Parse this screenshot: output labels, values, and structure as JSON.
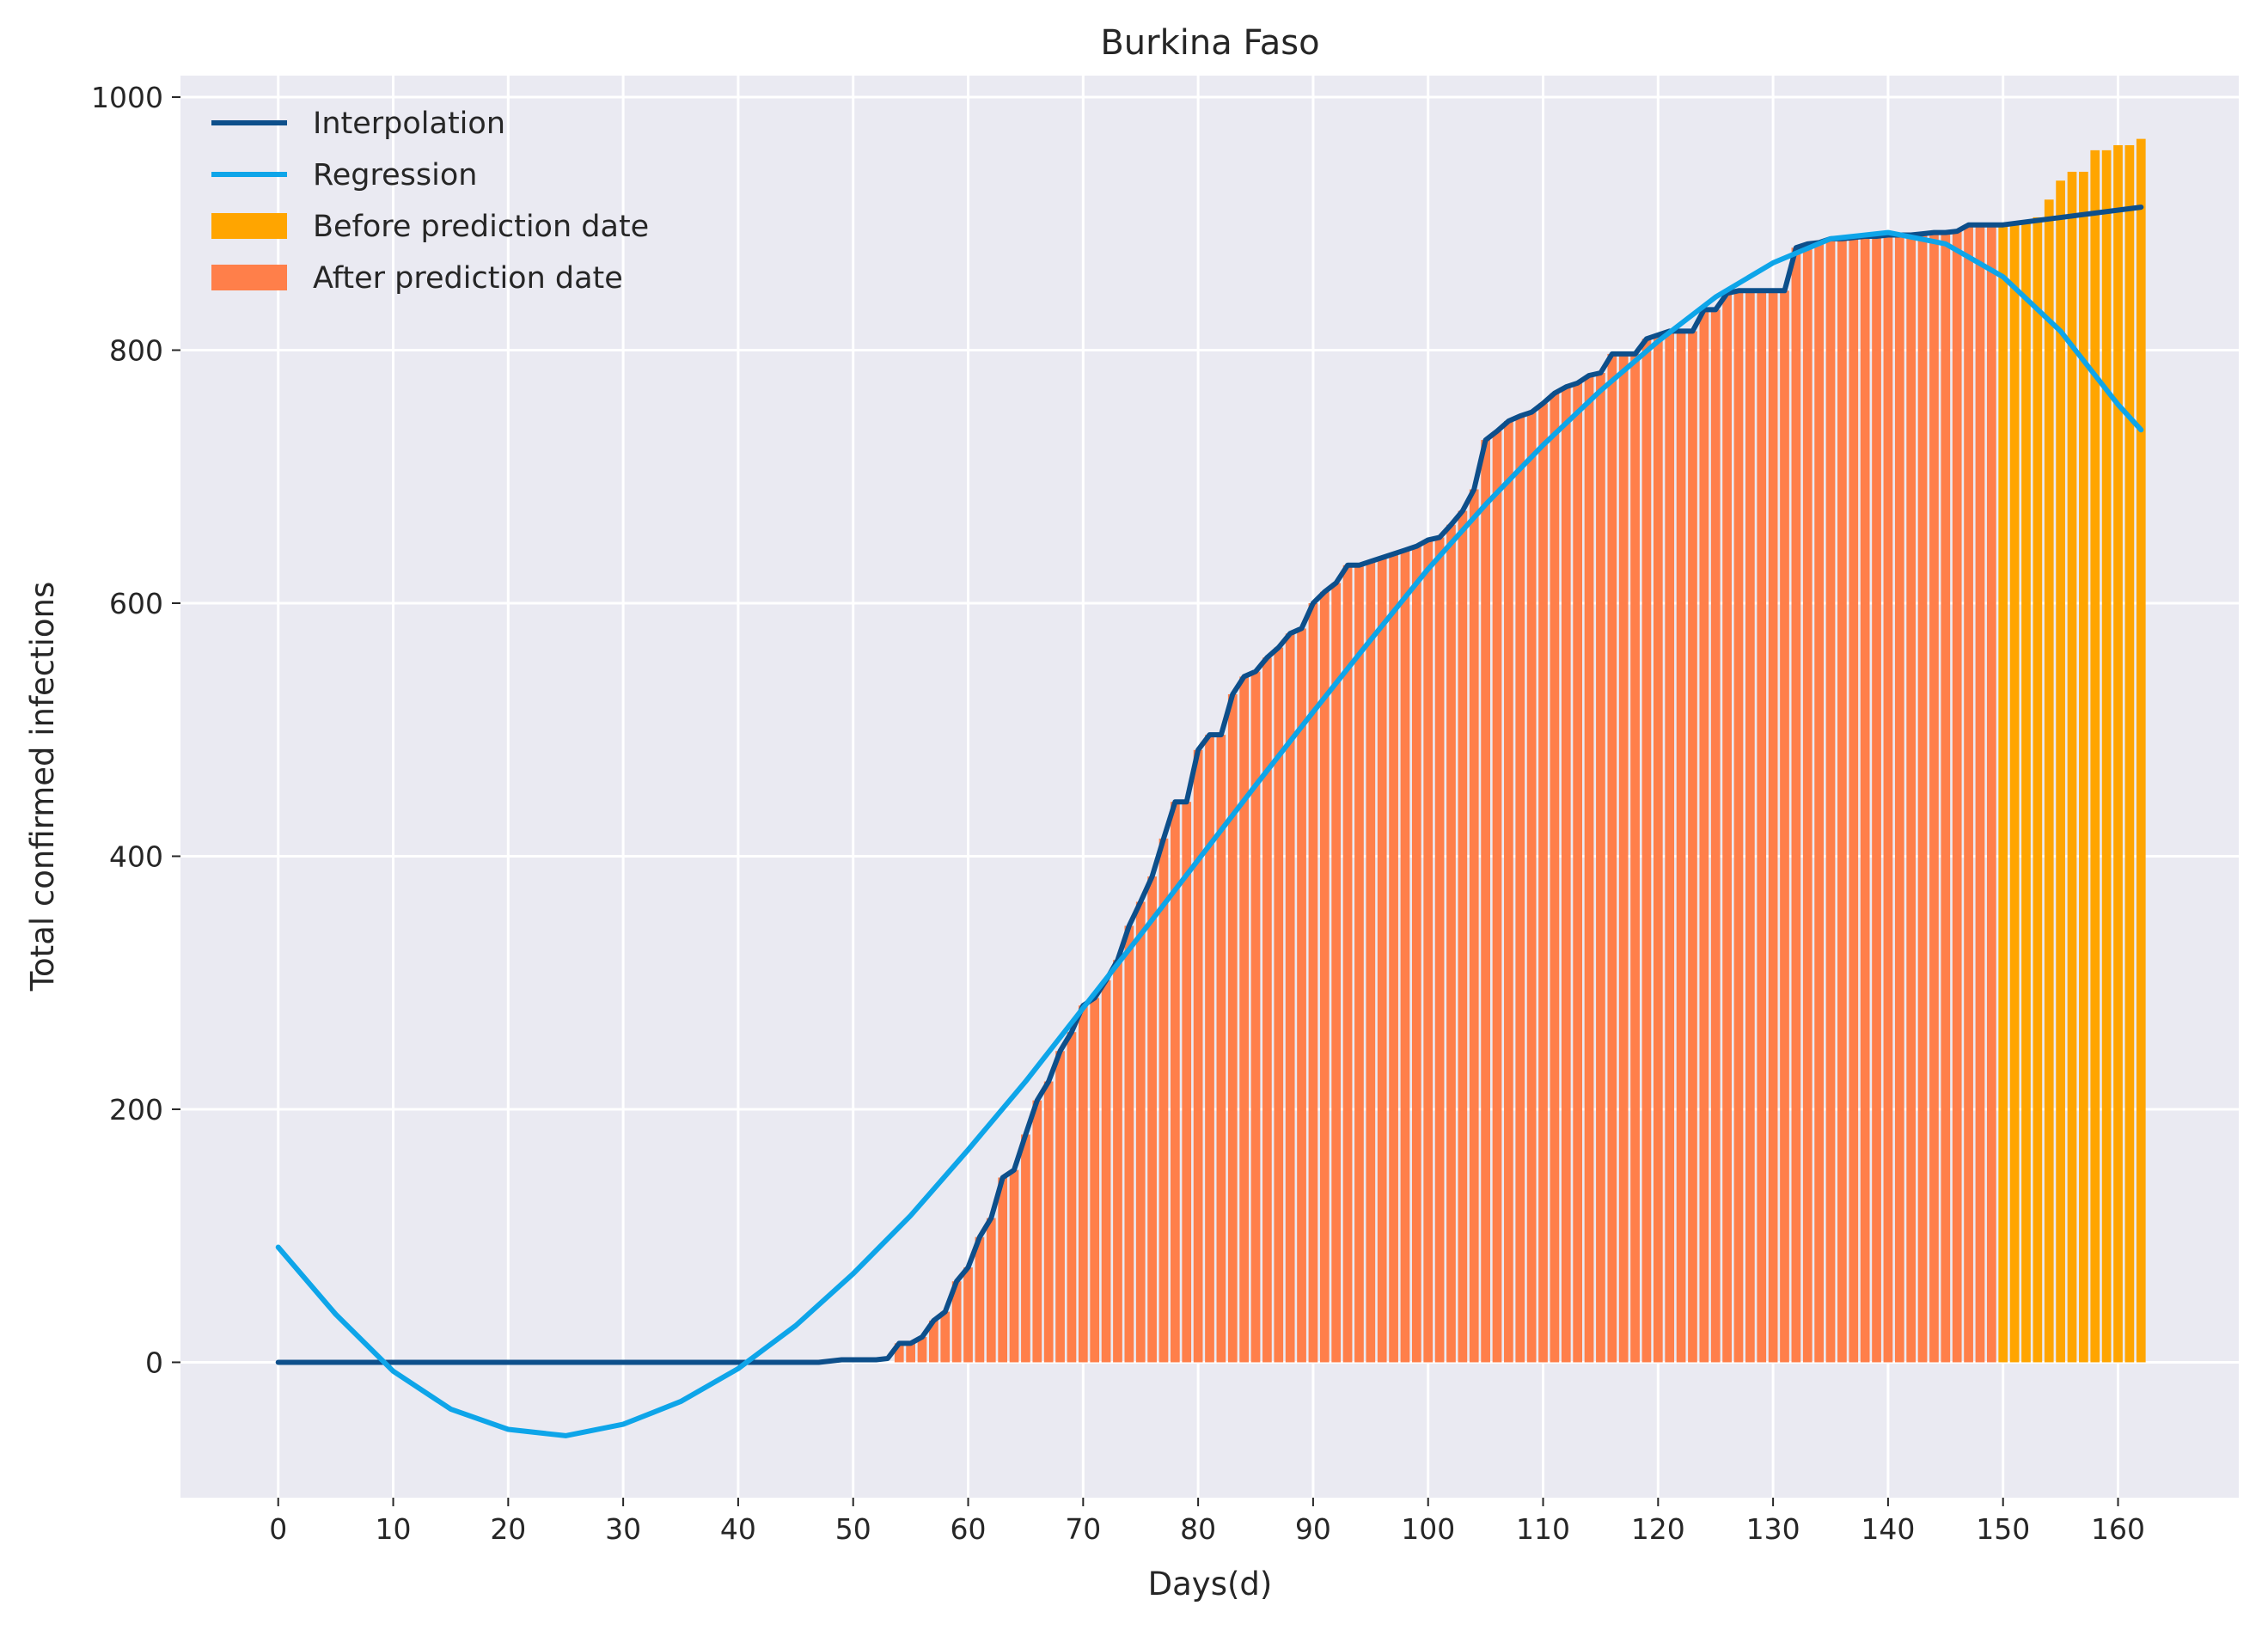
{
  "chart_data": {
    "type": "bar",
    "title": "Burkina Faso",
    "xlabel": "Days(d)",
    "ylabel": "Total confirmed infections",
    "xlim": [
      -8.5,
      170.5
    ],
    "ylim": [
      -107,
      1017
    ],
    "xticks": [
      0,
      10,
      20,
      30,
      40,
      50,
      60,
      70,
      80,
      90,
      100,
      110,
      120,
      130,
      140,
      150,
      160
    ],
    "yticks": [
      0,
      200,
      400,
      600,
      800,
      1000
    ],
    "grid": true,
    "legend_position": "top-left",
    "prediction_day": 150,
    "colors": {
      "background": "#eaeaf2",
      "grid": "#ffffff",
      "interpolation": "#0d4f8b",
      "regression": "#0ea5e9",
      "before": "#ffa500",
      "after": "#ff7f4a"
    },
    "bars_before": {
      "name": "Before prediction date",
      "x": [
        150,
        151,
        152,
        153,
        154,
        155,
        156,
        157,
        158,
        159,
        160,
        161,
        162
      ],
      "values": [
        899,
        900,
        902,
        905,
        919,
        934,
        941,
        941,
        958,
        958,
        962,
        962,
        967
      ]
    },
    "bars_after": {
      "name": "After prediction date",
      "x": [
        54,
        55,
        56,
        57,
        58,
        59,
        60,
        61,
        62,
        63,
        64,
        65,
        66,
        67,
        68,
        69,
        70,
        71,
        72,
        73,
        74,
        75,
        76,
        77,
        78,
        79,
        80,
        81,
        82,
        83,
        84,
        85,
        86,
        87,
        88,
        89,
        90,
        91,
        92,
        93,
        94,
        95,
        96,
        97,
        98,
        99,
        100,
        101,
        102,
        103,
        104,
        105,
        106,
        107,
        108,
        109,
        110,
        111,
        112,
        113,
        114,
        115,
        116,
        117,
        118,
        119,
        120,
        121,
        122,
        123,
        124,
        125,
        126,
        127,
        128,
        129,
        130,
        131,
        132,
        133,
        134,
        135,
        136,
        137,
        138,
        139,
        140,
        141,
        142,
        143,
        144,
        145,
        146,
        147,
        148,
        149
      ],
      "values": [
        15,
        15,
        20,
        33,
        40,
        64,
        75,
        99,
        114,
        146,
        152,
        180,
        207,
        222,
        246,
        261,
        282,
        288,
        302,
        318,
        345,
        364,
        384,
        414,
        443,
        443,
        484,
        496,
        496,
        528,
        542,
        546,
        557,
        565,
        576,
        580,
        600,
        609,
        616,
        630,
        630,
        633,
        636,
        639,
        642,
        645,
        650,
        652,
        662,
        673,
        690,
        729,
        736,
        744,
        748,
        751,
        758,
        766,
        771,
        774,
        780,
        782,
        797,
        797,
        797,
        809,
        812,
        815,
        815,
        815,
        832,
        832,
        845,
        847,
        847,
        847,
        847,
        847,
        881,
        884,
        885,
        888,
        888,
        889,
        890,
        890,
        891,
        891,
        891,
        892,
        893,
        893,
        894,
        899,
        899,
        899
      ]
    },
    "interpolation": {
      "name": "Interpolation",
      "x": [
        0,
        47,
        48,
        49,
        50,
        51,
        52,
        53,
        54,
        55,
        56,
        57,
        58,
        59,
        60,
        61,
        62,
        63,
        64,
        65,
        66,
        67,
        68,
        69,
        70,
        71,
        72,
        73,
        74,
        75,
        76,
        77,
        78,
        79,
        80,
        81,
        82,
        83,
        84,
        85,
        86,
        87,
        88,
        89,
        90,
        91,
        92,
        93,
        94,
        95,
        96,
        97,
        98,
        99,
        100,
        101,
        102,
        103,
        104,
        105,
        106,
        107,
        108,
        109,
        110,
        111,
        112,
        113,
        114,
        115,
        116,
        117,
        118,
        119,
        120,
        121,
        122,
        123,
        124,
        125,
        126,
        127,
        128,
        129,
        130,
        131,
        132,
        133,
        134,
        135,
        136,
        137,
        138,
        139,
        140,
        141,
        142,
        143,
        144,
        145,
        146,
        147,
        148,
        149,
        150,
        162
      ],
      "values": [
        0,
        0,
        1,
        2,
        2,
        2,
        2,
        3,
        15,
        15,
        20,
        33,
        40,
        64,
        75,
        99,
        114,
        146,
        152,
        180,
        207,
        222,
        246,
        261,
        282,
        288,
        302,
        318,
        345,
        364,
        384,
        414,
        443,
        443,
        484,
        496,
        496,
        528,
        542,
        546,
        557,
        565,
        576,
        580,
        600,
        609,
        616,
        630,
        630,
        633,
        636,
        639,
        642,
        645,
        650,
        652,
        662,
        673,
        690,
        729,
        736,
        744,
        748,
        751,
        758,
        766,
        771,
        774,
        780,
        782,
        797,
        797,
        797,
        809,
        812,
        815,
        815,
        815,
        832,
        832,
        845,
        847,
        847,
        847,
        847,
        847,
        881,
        884,
        885,
        888,
        888,
        889,
        890,
        890,
        891,
        891,
        891,
        892,
        893,
        893,
        894,
        899,
        899,
        899,
        899,
        913
      ]
    },
    "regression": {
      "name": "Regression",
      "x": [
        0,
        5,
        10,
        15,
        20,
        25,
        30,
        35,
        40,
        45,
        50,
        55,
        60,
        65,
        70,
        75,
        80,
        85,
        90,
        95,
        100,
        105,
        110,
        115,
        120,
        125,
        130,
        135,
        140,
        145,
        150,
        155,
        160,
        162
      ],
      "values": [
        91,
        38,
        -7,
        -37,
        -53,
        -58,
        -49,
        -31,
        -5,
        29,
        70,
        116,
        168,
        222,
        280,
        338,
        397,
        456,
        514,
        571,
        627,
        678,
        725,
        768,
        807,
        842,
        869,
        888,
        893,
        884,
        858,
        815,
        757,
        737
      ]
    }
  }
}
